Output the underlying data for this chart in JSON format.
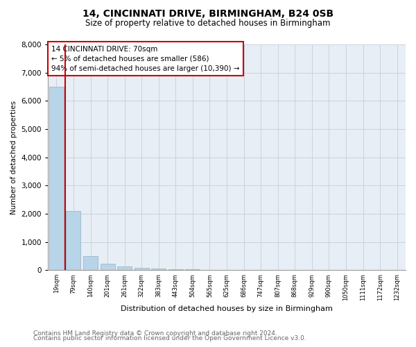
{
  "title": "14, CINCINNATI DRIVE, BIRMINGHAM, B24 0SB",
  "subtitle": "Size of property relative to detached houses in Birmingham",
  "xlabel": "Distribution of detached houses by size in Birmingham",
  "ylabel": "Number of detached properties",
  "footnote1": "Contains HM Land Registry data © Crown copyright and database right 2024.",
  "footnote2": "Contains public sector information licensed under the Open Government Licence v3.0.",
  "annotation_line1": "14 CINCINNATI DRIVE: 70sqm",
  "annotation_line2": "← 5% of detached houses are smaller (586)",
  "annotation_line3": "94% of semi-detached houses are larger (10,390) →",
  "bar_color": "#b8d4e8",
  "bar_edge_color": "#9ab8cc",
  "indicator_color": "#cc0000",
  "annotation_box_color": "#cc0000",
  "ylim": [
    0,
    8000
  ],
  "yticks": [
    0,
    1000,
    2000,
    3000,
    4000,
    5000,
    6000,
    7000,
    8000
  ],
  "bin_labels": [
    "19sqm",
    "79sqm",
    "140sqm",
    "201sqm",
    "261sqm",
    "322sqm",
    "383sqm",
    "443sqm",
    "504sqm",
    "565sqm",
    "625sqm",
    "686sqm",
    "747sqm",
    "807sqm",
    "868sqm",
    "929sqm",
    "990sqm",
    "1050sqm",
    "1111sqm",
    "1172sqm",
    "1232sqm"
  ],
  "bar_heights": [
    6500,
    2100,
    490,
    230,
    130,
    75,
    50,
    35,
    20,
    14,
    10,
    8,
    7,
    6,
    5,
    4,
    3,
    3,
    2,
    2,
    1
  ],
  "background_color": "#ffffff",
  "plot_bg_color": "#e8eef5",
  "grid_color": "#c8d4e0"
}
